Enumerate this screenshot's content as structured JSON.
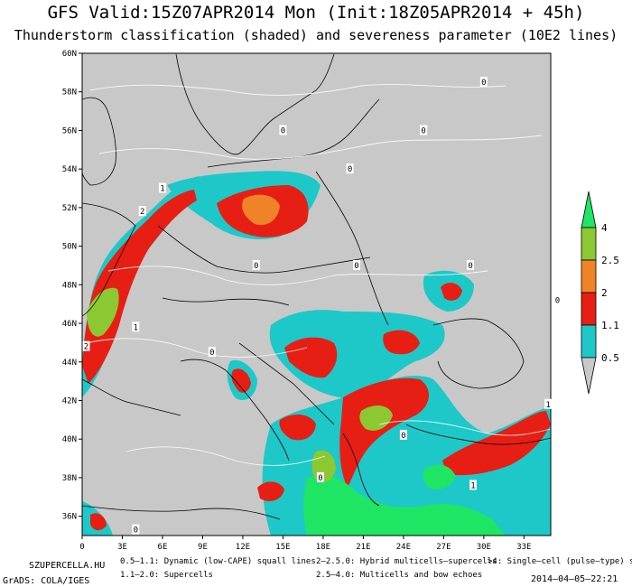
{
  "header": {
    "title": "GFS Valid:15Z07APR2014 Mon (Init:18Z05APR2014 + 45h)",
    "subtitle": "Thunderstorm classification (shaded) and severeness parameter (10E2 lines)"
  },
  "axes": {
    "lat_labels": [
      "60N",
      "58N",
      "56N",
      "54N",
      "52N",
      "50N",
      "48N",
      "46N",
      "44N",
      "42N",
      "40N",
      "38N",
      "36N"
    ],
    "lon_labels": [
      "0",
      "3E",
      "6E",
      "9E",
      "12E",
      "15E",
      "18E",
      "21E",
      "24E",
      "27E",
      "30E",
      "33E"
    ]
  },
  "colorbar": {
    "labels": [
      "4",
      "2.5",
      "2",
      "1.1",
      "0.5"
    ],
    "colors": [
      "#1ee664",
      "#8cc832",
      "#f08228",
      "#e61e14",
      "#1ec8c8"
    ]
  },
  "contour_labels": [
    {
      "text": "0",
      "lat": 58.5,
      "lon": 30.0
    },
    {
      "text": "0",
      "lat": 56.0,
      "lon": 25.5
    },
    {
      "text": "0",
      "lat": 56.0,
      "lon": 15.0
    },
    {
      "text": "0",
      "lat": 54.0,
      "lon": 20.0
    },
    {
      "text": "1",
      "lat": 53.0,
      "lon": 6.0
    },
    {
      "text": "2",
      "lat": 51.8,
      "lon": 4.5
    },
    {
      "text": "0",
      "lat": 49.0,
      "lon": 13.0
    },
    {
      "text": "0",
      "lat": 49.0,
      "lon": 20.5
    },
    {
      "text": "0",
      "lat": 49.0,
      "lon": 29.0
    },
    {
      "text": "0",
      "lat": 47.2,
      "lon": 35.5
    },
    {
      "text": "1",
      "lat": 45.8,
      "lon": 4.0
    },
    {
      "text": "2",
      "lat": 44.8,
      "lon": 0.3
    },
    {
      "text": "0",
      "lat": 44.5,
      "lon": 9.7
    },
    {
      "text": "0",
      "lat": 40.2,
      "lon": 24.0
    },
    {
      "text": "1",
      "lat": 41.8,
      "lon": 34.8
    },
    {
      "text": "1",
      "lat": 37.6,
      "lon": 29.2
    },
    {
      "text": "0",
      "lat": 38.0,
      "lon": 17.8
    },
    {
      "text": "0",
      "lat": 35.3,
      "lon": 4.0
    }
  ],
  "footer": {
    "source": "SZUPERCELLA.HU",
    "legend1": "0.5–1.1: Dynamic (low-CAPE) squall lines",
    "legend2": "1.1–2.0: Supercells",
    "legend3": "2–2.5.0: Hybrid multicells–supercells",
    "legend4": "2.5–4.0: Multicells and bow echoes",
    "legend5": ">4: Single–cell (pulse–type) storms",
    "grads": "GrADS: COLA/IGES",
    "timestamp": "2014–04–05–22:21"
  }
}
